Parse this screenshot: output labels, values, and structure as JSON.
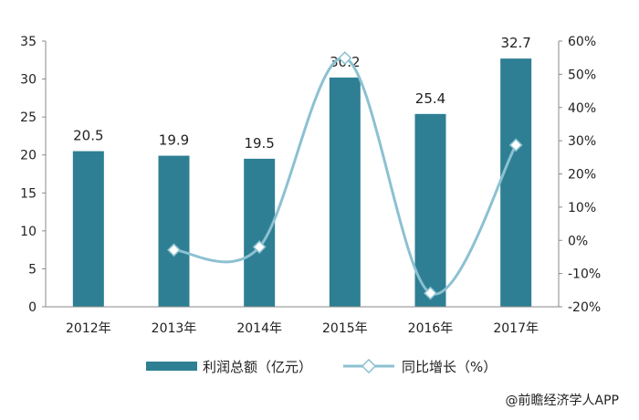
{
  "chart_data": {
    "type": "bar",
    "categories": [
      "2012年",
      "2013年",
      "2014年",
      "2015年",
      "2016年",
      "2017年"
    ],
    "series": [
      {
        "name": "利润总额（亿元）",
        "type": "bar",
        "axis": "left",
        "color": "#2e7f93",
        "values": [
          20.5,
          19.9,
          19.5,
          30.2,
          25.4,
          32.7
        ]
      },
      {
        "name": "同比增长（%）",
        "type": "line",
        "axis": "right",
        "color": "#8cc1d1",
        "values": [
          null,
          -2.9,
          -2.0,
          54.9,
          -15.9,
          28.7
        ]
      }
    ],
    "left_axis": {
      "ylim": [
        0,
        35
      ],
      "ticks": [
        "0",
        "5",
        "10",
        "15",
        "20",
        "25",
        "30",
        "35"
      ]
    },
    "right_axis": {
      "ylim": [
        -20,
        60
      ],
      "ticks": [
        "-20%",
        "-10%",
        "0%",
        "10%",
        "20%",
        "30%",
        "40%",
        "50%",
        "60%"
      ]
    },
    "legend_position": "bottom",
    "grid": false
  },
  "credit": "@前瞻经济学人APP"
}
